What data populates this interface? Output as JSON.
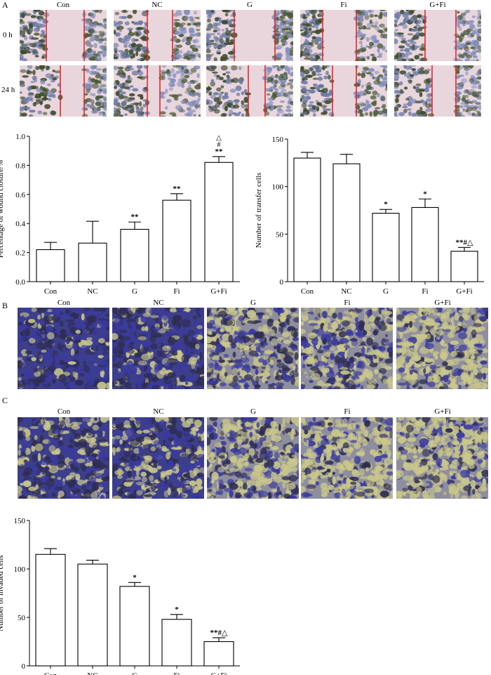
{
  "panels": {
    "A": "A",
    "B": "B",
    "C": "C"
  },
  "groups": [
    "Con",
    "NC",
    "G",
    "Fi",
    "G+Fi"
  ],
  "timepoints": [
    "0 h",
    "24 h"
  ],
  "colors": {
    "wound_bg": "#e9d6dc",
    "wound_line": "#e0282a",
    "cell_dark": "#2f2d52",
    "cell_blue": "#3a3aa0",
    "cell_yellow": "#c9c78a",
    "bar_fill": "#ffffff",
    "axis": "#000000"
  },
  "chart_data": [
    {
      "id": "wound",
      "type": "bar",
      "categories": [
        "Con",
        "NC",
        "G",
        "Fi",
        "G+Fi"
      ],
      "values": [
        0.22,
        0.265,
        0.36,
        0.56,
        0.82
      ],
      "errors": [
        0.05,
        0.15,
        0.05,
        0.045,
        0.04
      ],
      "annotations": [
        "",
        "",
        "**",
        "**",
        "**"
      ],
      "annotations_extra": [
        "",
        "",
        "",
        "",
        "△\n#"
      ],
      "title": "",
      "xlabel": "",
      "ylabel": "Percentage of wound closure/%",
      "ylim": [
        0,
        1.0
      ],
      "yticks": [
        "0.0",
        "0.2",
        "0.4",
        "0.6",
        "0.8",
        "1.0"
      ],
      "grid": false
    },
    {
      "id": "transfer",
      "type": "bar",
      "categories": [
        "Con",
        "NC",
        "G",
        "Fi",
        "G+Fi"
      ],
      "values": [
        130,
        124,
        72,
        78,
        32
      ],
      "errors": [
        6,
        10,
        4,
        9,
        4
      ],
      "annotations": [
        "",
        "",
        "*",
        "*",
        "**#△"
      ],
      "title": "",
      "xlabel": "",
      "ylabel": "Number of transfer cells",
      "ylim": [
        0,
        150
      ],
      "yticks": [
        "0",
        "50",
        "100",
        "150"
      ],
      "grid": false
    },
    {
      "id": "invaded",
      "type": "bar",
      "categories": [
        "Con",
        "NC",
        "G",
        "Fi",
        "G+Fi"
      ],
      "values": [
        115,
        105,
        82,
        48,
        25
      ],
      "errors": [
        6,
        4,
        4,
        5,
        4
      ],
      "annotations": [
        "",
        "",
        "*",
        "*",
        "**#△"
      ],
      "title": "",
      "xlabel": "",
      "ylabel": "Number of invaded cells",
      "ylim": [
        0,
        150
      ],
      "yticks": [
        "0",
        "50",
        "100",
        "150"
      ],
      "grid": false
    }
  ]
}
